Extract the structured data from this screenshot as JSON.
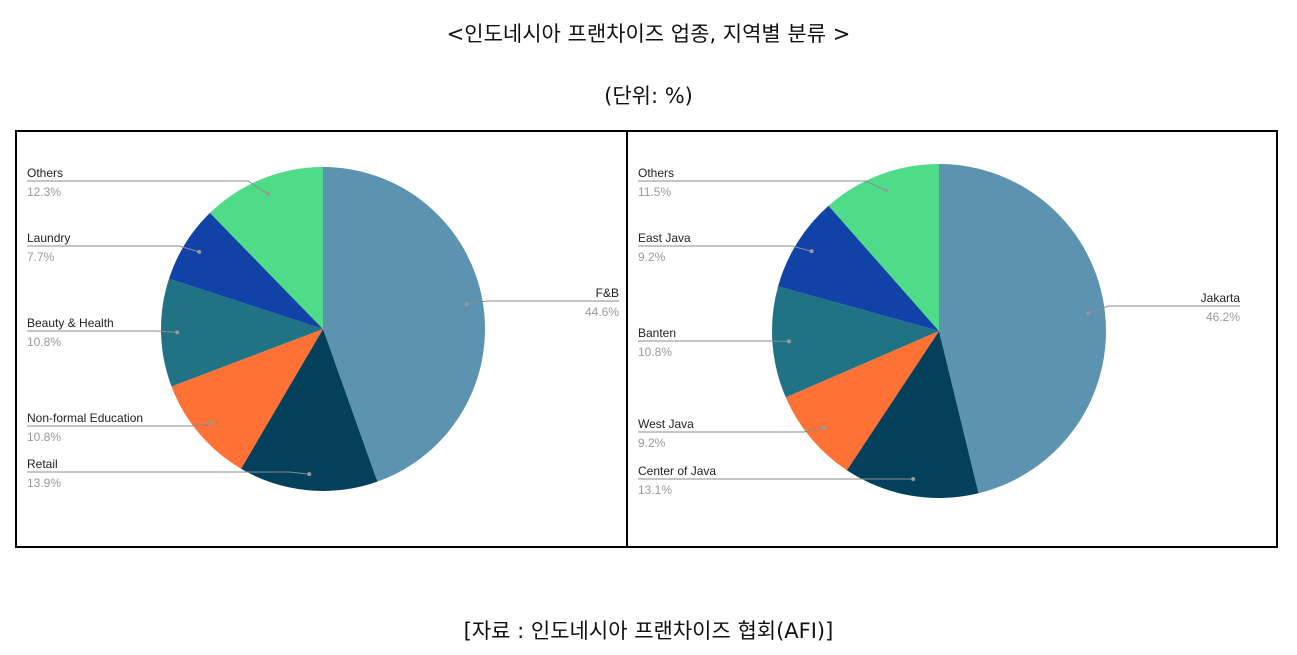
{
  "header": {
    "title": "<인도네시아 프랜차이즈 업종, 지역별 분류 >",
    "unit": "(단위: %)"
  },
  "footer": {
    "source": "[자료 : 인도네시아 프랜차이즈 협회(AFI)]"
  },
  "chart_data": [
    {
      "type": "pie",
      "title": "",
      "slices": [
        {
          "label": "F&B",
          "value": 44.6,
          "value_label": "44.6%",
          "color": "#5b93b0",
          "side": "right"
        },
        {
          "label": "Retail",
          "value": 13.9,
          "value_label": "13.9%",
          "color": "#02405c",
          "side": "left"
        },
        {
          "label": "Non-formal Education",
          "value": 10.8,
          "value_label": "10.8%",
          "color": "#ff7134",
          "side": "left"
        },
        {
          "label": "Beauty & Health",
          "value": 10.8,
          "value_label": "10.8%",
          "color": "#1f7384",
          "side": "left"
        },
        {
          "label": "Laundry",
          "value": 7.7,
          "value_label": "7.7%",
          "color": "#1042a7",
          "side": "left"
        },
        {
          "label": "Others",
          "value": 12.3,
          "value_label": "12.3%",
          "color": "#4fdc88",
          "side": "left"
        }
      ]
    },
    {
      "type": "pie",
      "title": "",
      "slices": [
        {
          "label": "Jakarta",
          "value": 46.2,
          "value_label": "46.2%",
          "color": "#5b93b0",
          "side": "right"
        },
        {
          "label": "Center of Java",
          "value": 13.1,
          "value_label": "13.1%",
          "color": "#02405c",
          "side": "left"
        },
        {
          "label": "West Java",
          "value": 9.2,
          "value_label": "9.2%",
          "color": "#ff7134",
          "side": "left"
        },
        {
          "label": "Banten",
          "value": 10.8,
          "value_label": "10.8%",
          "color": "#1f7384",
          "side": "left"
        },
        {
          "label": "East Java",
          "value": 9.2,
          "value_label": "9.2%",
          "color": "#1042a7",
          "side": "left"
        },
        {
          "label": "Others",
          "value": 11.5,
          "value_label": "11.5%",
          "color": "#4fdc88",
          "side": "left"
        }
      ]
    }
  ]
}
